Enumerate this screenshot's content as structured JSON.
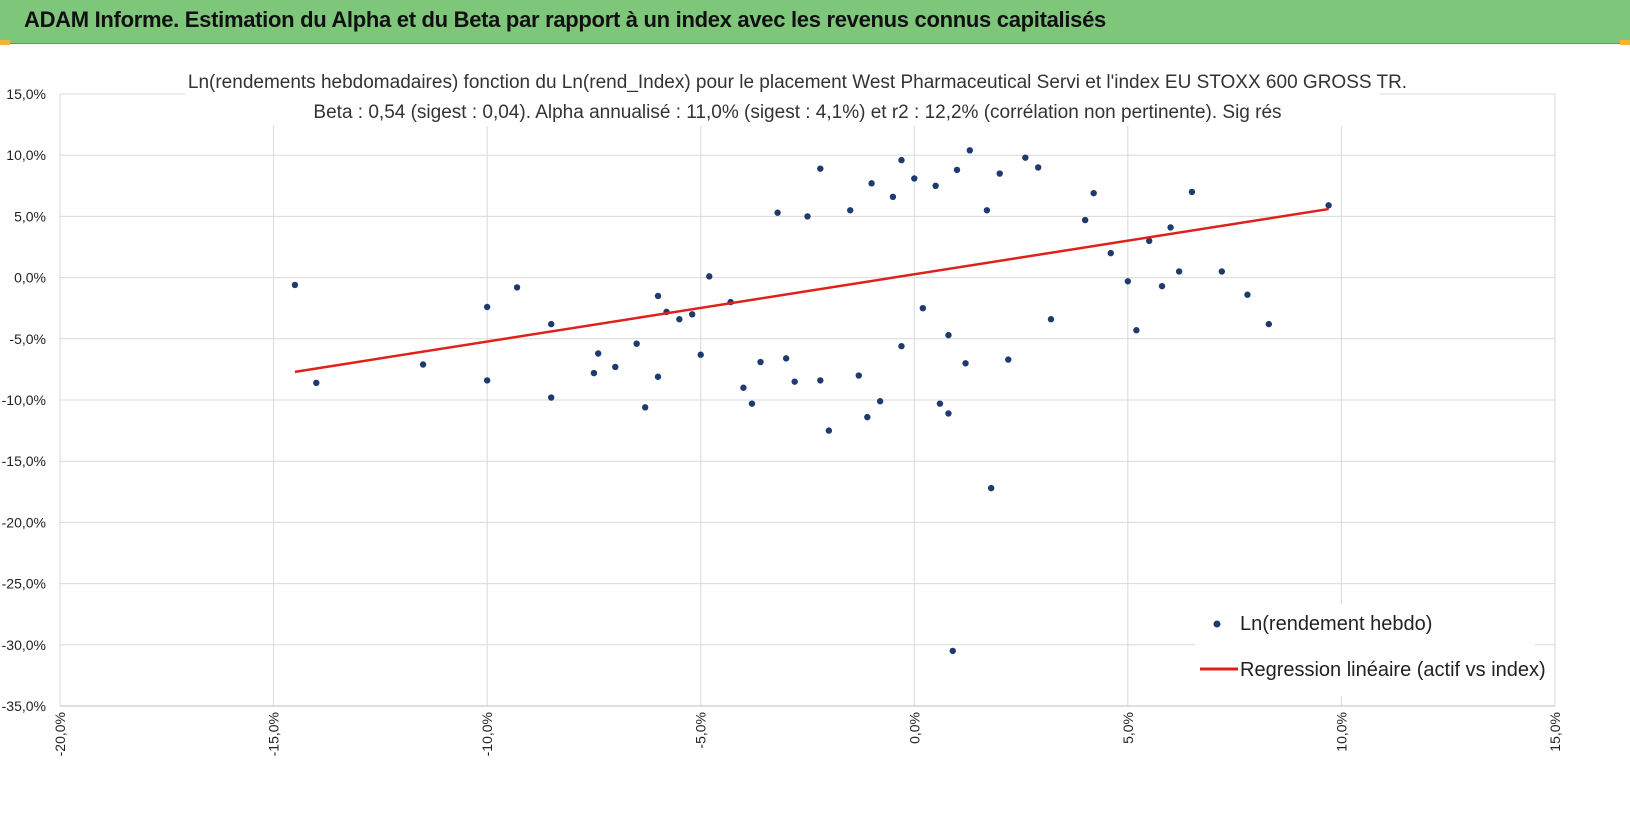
{
  "banner": {
    "title": "ADAM Informe. Estimation du Alpha et du Beta par rapport à un index avec les revenus connus capitalisés",
    "color": "#7dc67a"
  },
  "chart_data": {
    "type": "scatter",
    "title_line1": "Ln(rendements hebdomadaires) fonction du Ln(rend_Index) pour le placement West Pharmaceutical Servi et l'index EU STOXX 600 GROSS TR.",
    "title_line2": "Beta : 0,54 (sigest : 0,04). Alpha annualisé : 11,0% (sigest : 4,1%) et r2 : 12,2% (corrélation non pertinente). Sig rés",
    "xlim": [
      -0.2,
      0.15
    ],
    "ylim": [
      -0.35,
      0.15
    ],
    "x_ticks": [
      -0.2,
      -0.15,
      -0.1,
      -0.05,
      0.0,
      0.05,
      0.1,
      0.15
    ],
    "x_tick_labels": [
      "-20,0%",
      "-15,0%",
      "-10,0%",
      "-5,0%",
      "0,0%",
      "5,0%",
      "10,0%",
      "15,0%"
    ],
    "y_ticks": [
      0.15,
      0.1,
      0.05,
      0.0,
      -0.05,
      -0.1,
      -0.15,
      -0.2,
      -0.25,
      -0.3,
      -0.35
    ],
    "y_tick_labels": [
      "15,0%",
      "10,0%",
      "5,0%",
      "0,0%",
      "-5,0%",
      "-10,0%",
      "-15,0%",
      "-20,0%",
      "-25,0%",
      "-30,0%",
      "-35,0%"
    ],
    "grid": true,
    "legend_position": "bottom-right",
    "series": [
      {
        "name": "Ln(rendement hebdo)",
        "kind": "scatter",
        "color": "#1f3a6e",
        "points": [
          [
            -0.145,
            -0.006
          ],
          [
            -0.14,
            -0.086
          ],
          [
            -0.115,
            -0.071
          ],
          [
            -0.1,
            -0.024
          ],
          [
            -0.1,
            -0.084
          ],
          [
            -0.093,
            -0.008
          ],
          [
            -0.085,
            -0.038
          ],
          [
            -0.085,
            -0.098
          ],
          [
            -0.075,
            -0.078
          ],
          [
            -0.074,
            -0.062
          ],
          [
            -0.07,
            -0.073
          ],
          [
            -0.065,
            -0.054
          ],
          [
            -0.063,
            -0.106
          ],
          [
            -0.06,
            -0.081
          ],
          [
            -0.058,
            -0.028
          ],
          [
            -0.055,
            -0.034
          ],
          [
            -0.05,
            -0.063
          ],
          [
            -0.048,
            0.001
          ],
          [
            -0.043,
            -0.02
          ],
          [
            -0.04,
            -0.09
          ],
          [
            -0.038,
            -0.103
          ],
          [
            -0.036,
            -0.069
          ],
          [
            -0.032,
            0.053
          ],
          [
            -0.03,
            -0.066
          ],
          [
            -0.028,
            -0.085
          ],
          [
            -0.025,
            0.05
          ],
          [
            -0.022,
            0.089
          ],
          [
            -0.022,
            -0.084
          ],
          [
            -0.02,
            -0.125
          ],
          [
            -0.015,
            0.055
          ],
          [
            -0.013,
            -0.08
          ],
          [
            -0.01,
            0.077
          ],
          [
            -0.005,
            0.066
          ],
          [
            -0.003,
            0.096
          ],
          [
            -0.003,
            -0.056
          ],
          [
            0.0,
            0.081
          ],
          [
            0.002,
            -0.025
          ],
          [
            0.005,
            0.075
          ],
          [
            0.008,
            -0.047
          ],
          [
            0.01,
            0.088
          ],
          [
            0.012,
            -0.07
          ],
          [
            0.013,
            0.104
          ],
          [
            0.017,
            0.055
          ],
          [
            0.018,
            -0.172
          ],
          [
            0.02,
            0.085
          ],
          [
            0.022,
            -0.067
          ],
          [
            0.026,
            0.098
          ],
          [
            0.029,
            0.09
          ],
          [
            0.032,
            -0.034
          ],
          [
            0.042,
            0.069
          ],
          [
            0.046,
            0.02
          ],
          [
            0.05,
            -0.003
          ],
          [
            0.052,
            -0.043
          ],
          [
            0.055,
            0.03
          ],
          [
            0.058,
            -0.007
          ],
          [
            0.06,
            0.041
          ],
          [
            0.062,
            0.005
          ],
          [
            0.065,
            0.07
          ],
          [
            0.072,
            0.005
          ],
          [
            0.078,
            -0.014
          ],
          [
            0.083,
            -0.038
          ],
          [
            0.097,
            0.059
          ],
          [
            0.009,
            -0.305
          ],
          [
            -0.011,
            -0.114
          ],
          [
            -0.008,
            -0.101
          ],
          [
            0.006,
            -0.103
          ],
          [
            0.008,
            -0.111
          ],
          [
            -0.06,
            -0.015
          ],
          [
            -0.052,
            -0.03
          ],
          [
            0.04,
            0.047
          ]
        ]
      },
      {
        "name": "Regression linéaire (actif vs index)",
        "kind": "line",
        "color": "#e0201b",
        "x": [
          -0.145,
          0.097
        ],
        "y": [
          -0.077,
          0.056
        ]
      }
    ]
  }
}
